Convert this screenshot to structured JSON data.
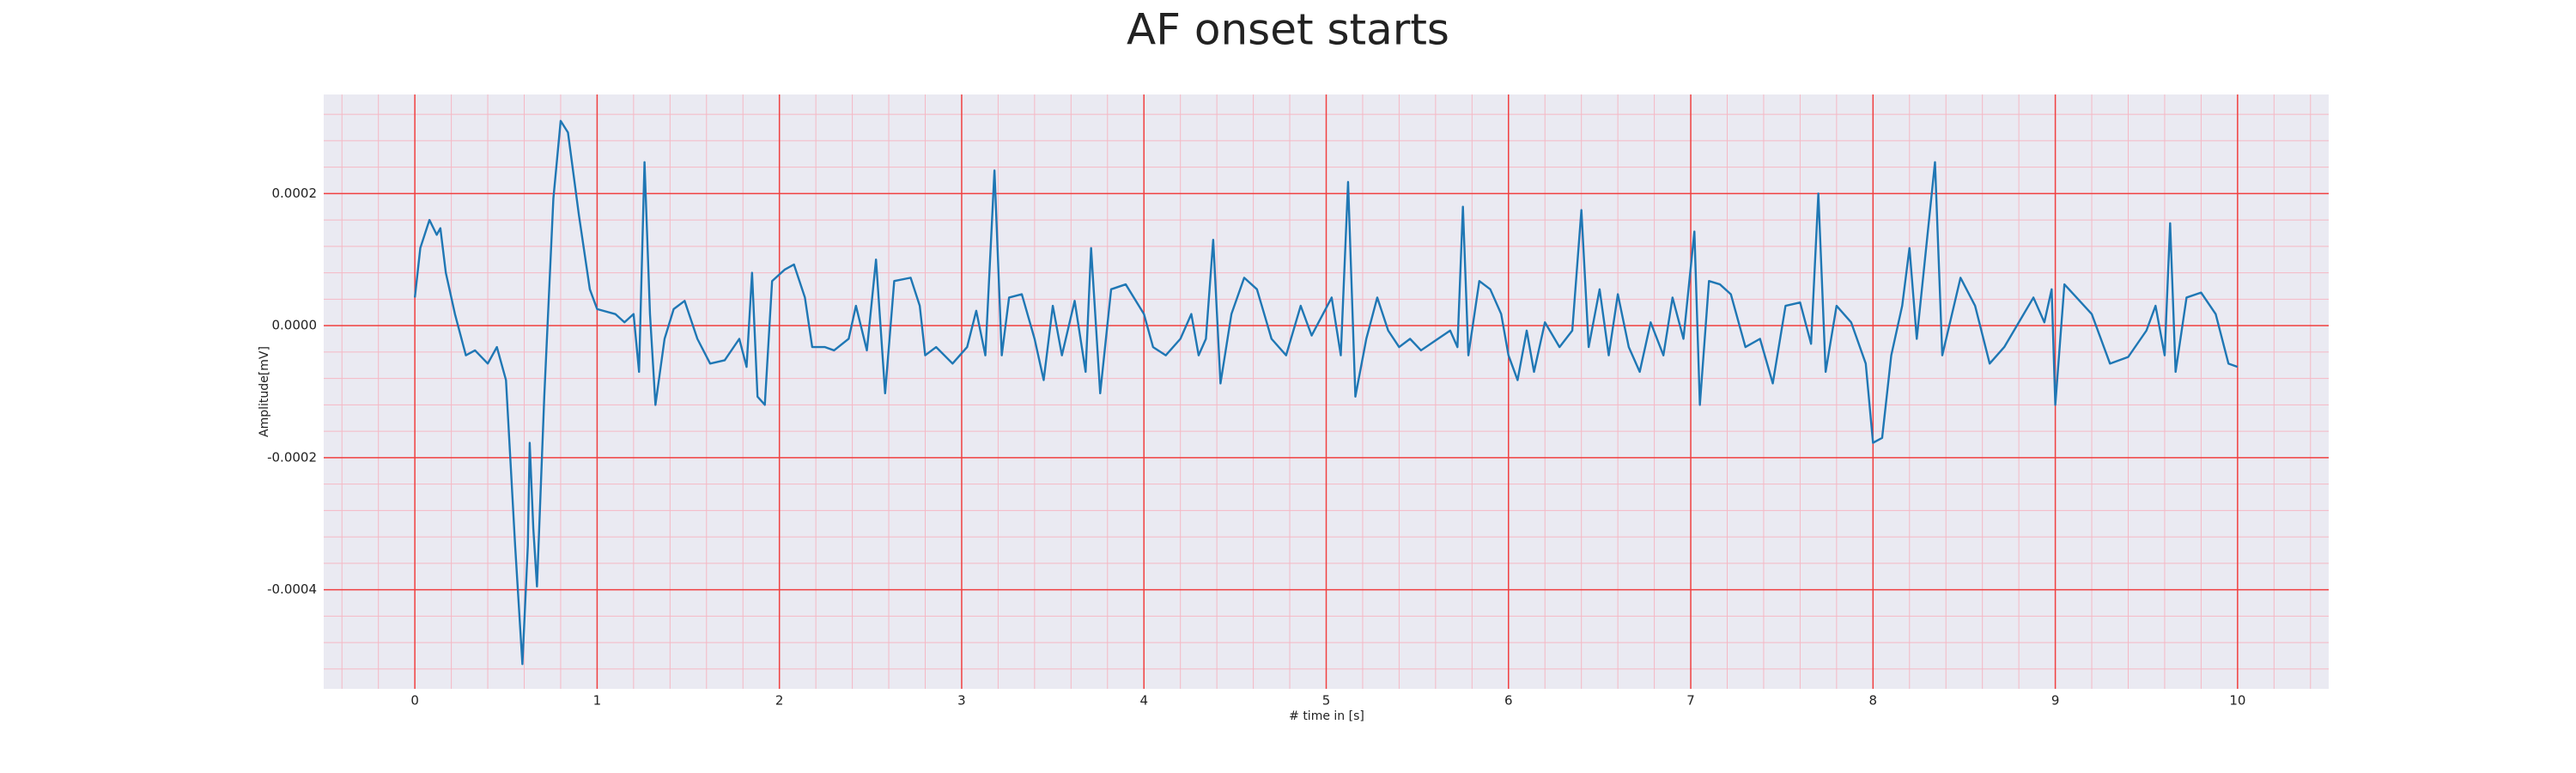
{
  "chart_data": {
    "type": "line",
    "title": "AF onset starts",
    "xlabel": "# time in [s]",
    "ylabel": "Amplitude[mV]",
    "xlim": [
      -0.5,
      10.5
    ],
    "ylim": [
      -0.00055,
      0.00035
    ],
    "xticks": [
      0,
      1,
      2,
      3,
      4,
      5,
      6,
      7,
      8,
      9,
      10
    ],
    "yticks": [
      -0.0004,
      -0.0002,
      {
        "value": 0,
        "label": "0.0000"
      },
      0.0002
    ],
    "grid": true,
    "minor_grid": true,
    "grid_color": "#f04040",
    "minor_grid_color": "#f5b8c4",
    "background": "#eaeaf2",
    "series": [
      {
        "color": "#1f77b4",
        "x": [
          0,
          0.03,
          0.08,
          0.12,
          0.14,
          0.17,
          0.22,
          0.28,
          0.33,
          0.4,
          0.45,
          0.5,
          0.55,
          0.59,
          0.62,
          0.63,
          0.65,
          0.67,
          0.71,
          0.76,
          0.8,
          0.84,
          0.9,
          0.96,
          1.0,
          1.1,
          1.15,
          1.2,
          1.23,
          1.26,
          1.29,
          1.32,
          1.37,
          1.42,
          1.48,
          1.55,
          1.62,
          1.7,
          1.78,
          1.82,
          1.85,
          1.88,
          1.92,
          1.96,
          2.03,
          2.08,
          2.14,
          2.18,
          2.25,
          2.3,
          2.38,
          2.42,
          2.48,
          2.53,
          2.58,
          2.63,
          2.72,
          2.77,
          2.8,
          2.86,
          2.95,
          3.03,
          3.08,
          3.13,
          3.18,
          3.22,
          3.26,
          3.33,
          3.4,
          3.45,
          3.5,
          3.55,
          3.62,
          3.68,
          3.71,
          3.76,
          3.82,
          3.9,
          4.0,
          4.05,
          4.12,
          4.2,
          4.26,
          4.3,
          4.34,
          4.38,
          4.42,
          4.48,
          4.55,
          4.62,
          4.7,
          4.78,
          4.86,
          4.92,
          5.03,
          5.08,
          5.12,
          5.16,
          5.22,
          5.28,
          5.34,
          5.4,
          5.46,
          5.52,
          5.6,
          5.68,
          5.72,
          5.75,
          5.78,
          5.84,
          5.9,
          5.96,
          6.0,
          6.05,
          6.1,
          6.14,
          6.2,
          6.28,
          6.35,
          6.4,
          6.44,
          6.5,
          6.55,
          6.6,
          6.66,
          6.72,
          6.78,
          6.85,
          6.9,
          6.96,
          7.02,
          7.05,
          7.1,
          7.16,
          7.22,
          7.3,
          7.38,
          7.45,
          7.52,
          7.6,
          7.66,
          7.7,
          7.74,
          7.8,
          7.88,
          7.96,
          8.0,
          8.05,
          8.1,
          8.16,
          8.2,
          8.24,
          8.34,
          8.38,
          8.48,
          8.56,
          8.64,
          8.72,
          8.8,
          8.88,
          8.94,
          8.98,
          9.0,
          9.05,
          9.1,
          9.2,
          9.3,
          9.4,
          9.5,
          9.55,
          9.6,
          9.63,
          9.66,
          9.72,
          9.8,
          9.88,
          9.95,
          10.0
        ],
        "values": [
          4.25e-05,
          0.0001175,
          0.00016,
          0.0001375,
          0.0001475,
          8e-05,
          1.75e-05,
          -4.5e-05,
          -3.75e-05,
          -5.75e-05,
          -3.25e-05,
          -8.25e-05,
          -0.0003325,
          -0.0005125,
          -0.0003325,
          -0.0001775,
          -0.0003075,
          -0.000395,
          -0.0001075,
          0.0001925,
          0.00031,
          0.0002925,
          0.0001675,
          5.5e-05,
          2.5e-05,
          1.75e-05,
          5e-06,
          1.75e-05,
          -7e-05,
          0.0002475,
          1.75e-05,
          -0.00012,
          -2e-05,
          2.5e-05,
          3.75e-05,
          -2e-05,
          -5.75e-05,
          -5.25e-05,
          -2e-05,
          -6.25e-05,
          8e-05,
          -0.0001075,
          -0.00012,
          6.75e-05,
          8.5e-05,
          9.25e-05,
          4.25e-05,
          -3.25e-05,
          -3.25e-05,
          -3.75e-05,
          -2e-05,
          3e-05,
          -3.75e-05,
          0.0001,
          -0.0001025,
          6.75e-05,
          7.25e-05,
          3e-05,
          -4.5e-05,
          -3.25e-05,
          -5.75e-05,
          -3.25e-05,
          2.25e-05,
          -4.5e-05,
          0.000235,
          -4.5e-05,
          4.25e-05,
          4.75e-05,
          -2e-05,
          -8.25e-05,
          3e-05,
          -4.5e-05,
          3.75e-05,
          -7e-05,
          0.0001175,
          -0.0001025,
          5.5e-05,
          6.25e-05,
          1.75e-05,
          -3.25e-05,
          -4.5e-05,
          -2e-05,
          1.75e-05,
          -4.5e-05,
          -2e-05,
          0.00013,
          -8.75e-05,
          1.75e-05,
          7.25e-05,
          5.5e-05,
          -2e-05,
          -4.5e-05,
          3e-05,
          -1.5e-05,
          4.25e-05,
          -4.5e-05,
          0.0002175,
          -0.0001075,
          -2e-05,
          4.25e-05,
          -7.5e-06,
          -3.25e-05,
          -2e-05,
          -3.75e-05,
          -2.25e-05,
          -7.5e-06,
          -3.25e-05,
          0.00018,
          -4.5e-05,
          6.75e-05,
          5.5e-05,
          1.75e-05,
          -4.5e-05,
          -8.25e-05,
          -7.5e-06,
          -7e-05,
          5e-06,
          -3.25e-05,
          -7.5e-06,
          0.000175,
          -3.25e-05,
          5.5e-05,
          -4.5e-05,
          4.75e-05,
          -3.25e-05,
          -7e-05,
          5e-06,
          -4.5e-05,
          4.25e-05,
          -2e-05,
          0.0001425,
          -0.00012,
          6.75e-05,
          6.25e-05,
          4.75e-05,
          -3.25e-05,
          -2e-05,
          -8.75e-05,
          3e-05,
          3.5e-05,
          -2.75e-05,
          0.0002,
          -7e-05,
          3e-05,
          5e-06,
          -5.75e-05,
          -0.0001775,
          -0.00017,
          -4.5e-05,
          3e-05,
          0.0001175,
          -2e-05,
          0.0002475,
          -4.5e-05,
          7.25e-05,
          3e-05,
          -5.75e-05,
          -3.25e-05,
          5e-06,
          4.25e-05,
          5e-06,
          5.5e-05,
          -0.00012,
          6.25e-05,
          4.75e-05,
          1.75e-05,
          -5.75e-05,
          -4.75e-05,
          -7.5e-06,
          3e-05,
          -4.5e-05,
          0.000155,
          -7e-05,
          4.25e-05,
          5e-05,
          1.75e-05,
          -5.75e-05,
          -6.25e-05
        ]
      }
    ]
  }
}
